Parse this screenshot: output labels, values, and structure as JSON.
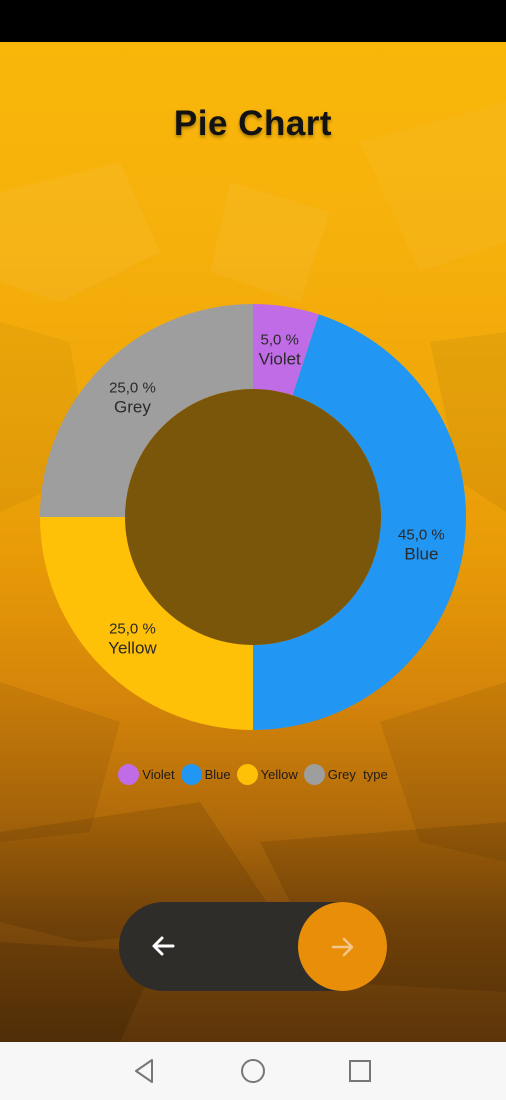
{
  "header": {
    "title": "Pie Chart"
  },
  "chart_data": {
    "type": "pie",
    "title": "Pie Chart",
    "donut": true,
    "categories": [
      "Violet",
      "Blue",
      "Yellow",
      "Grey"
    ],
    "values": [
      5.0,
      45.0,
      25.0,
      25.0
    ],
    "value_labels": [
      "5,0 %",
      "45,0 %",
      "25,0 %",
      "25,0 %"
    ],
    "colors": [
      "#c06ce6",
      "#2196f3",
      "#ffc107",
      "#9e9e9e"
    ],
    "legend_position": "bottom"
  },
  "legend": {
    "items": [
      {
        "label": "Violet",
        "color": "#c06ce6"
      },
      {
        "label": "Blue",
        "color": "#2196f3"
      },
      {
        "label": "Yellow",
        "color": "#ffc107"
      },
      {
        "label": "Grey  type",
        "color": "#9e9e9e"
      }
    ]
  },
  "pager": {
    "back_icon": "arrow-left-icon",
    "next_icon": "arrow-right-icon"
  },
  "system_nav": {
    "back_icon": "triangle-back-icon",
    "home_icon": "circle-home-icon",
    "recents_icon": "square-recents-icon"
  }
}
